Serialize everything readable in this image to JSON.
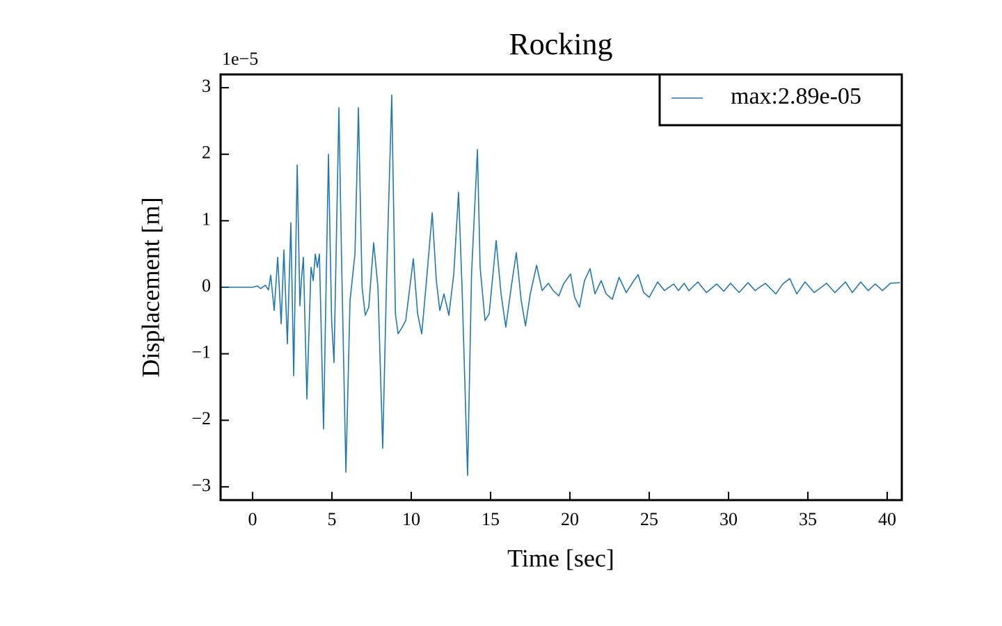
{
  "chart_data": {
    "type": "line",
    "title": "Rocking",
    "x_label": "Time [sec]",
    "y_label": "Displacement [m]",
    "offset_label": "1e−5",
    "xlim": [
      -2.02,
      40.92
    ],
    "ylim": [
      -3.2,
      3.2
    ],
    "xticks": [
      0,
      5,
      10,
      15,
      20,
      25,
      30,
      35,
      40
    ],
    "yticks": [
      {
        "value": -3,
        "label": "−3"
      },
      {
        "value": -2,
        "label": "−2"
      },
      {
        "value": -1,
        "label": "−1"
      },
      0,
      1,
      2,
      3
    ],
    "legend": "upper right",
    "x": [
      -2,
      0,
      0.3,
      0.5,
      0.8,
      1.0,
      1.14,
      1.36,
      1.58,
      1.8,
      1.97,
      2.19,
      2.41,
      2.59,
      2.81,
      2.98,
      3.07,
      3.2,
      3.42,
      3.68,
      3.82,
      3.95,
      4.08,
      4.21,
      4.47,
      4.78,
      4.98,
      5.13,
      5.44,
      5.6,
      5.88,
      6.14,
      6.45,
      6.67,
      6.9,
      7.1,
      7.32,
      7.63,
      7.9,
      8.2,
      8.46,
      8.77,
      9.0,
      9.17,
      9.43,
      9.65,
      10.13,
      10.4,
      10.66,
      10.96,
      11.32,
      11.58,
      11.8,
      12.06,
      12.37,
      12.68,
      12.98,
      13.2,
      13.55,
      13.8,
      14.17,
      14.34,
      14.65,
      14.91,
      15.35,
      15.66,
      15.96,
      16.3,
      16.62,
      16.93,
      17.2,
      17.5,
      17.9,
      18.25,
      18.64,
      18.95,
      19.3,
      19.6,
      20.04,
      20.3,
      20.6,
      20.92,
      21.27,
      21.58,
      21.97,
      22.28,
      22.67,
      23.1,
      23.55,
      24.03,
      24.3,
      24.65,
      25.0,
      25.53,
      25.96,
      26.54,
      26.84,
      27.2,
      27.5,
      28.07,
      28.6,
      29.25,
      29.7,
      30.13,
      30.66,
      31.23,
      31.67,
      32.32,
      32.98,
      33.42,
      33.86,
      34.3,
      34.82,
      35.4,
      36.18,
      36.7,
      37.37,
      37.8,
      38.33,
      38.8,
      39.25,
      39.7,
      40.2,
      40.8
    ],
    "series": [
      {
        "name": "max:2.89e-05",
        "color": "#1f77b4",
        "values": [
          0,
          0,
          0.02,
          -0.02,
          0.03,
          -0.04,
          0.18,
          -0.35,
          0.45,
          -0.55,
          0.56,
          -0.85,
          0.97,
          -1.33,
          1.84,
          -0.28,
          0.1,
          0.45,
          -1.68,
          0.3,
          0.1,
          0.5,
          0.3,
          0.5,
          -2.13,
          2.0,
          -0.5,
          -1.13,
          2.7,
          0.5,
          -2.78,
          -0.2,
          0.5,
          2.7,
          0.0,
          -0.42,
          -0.3,
          0.67,
          0.0,
          -2.42,
          0.3,
          2.89,
          -0.4,
          -0.7,
          -0.6,
          -0.5,
          0.43,
          -0.4,
          -0.7,
          0.1,
          1.12,
          0.1,
          -0.35,
          -0.1,
          -0.42,
          0.2,
          1.43,
          0.0,
          -2.83,
          0.2,
          2.07,
          0.3,
          -0.5,
          -0.4,
          0.7,
          -0.1,
          -0.6,
          0.0,
          0.52,
          -0.2,
          -0.58,
          -0.1,
          0.33,
          -0.05,
          0.06,
          -0.05,
          -0.13,
          0.05,
          0.2,
          -0.15,
          -0.3,
          0.1,
          0.28,
          -0.1,
          0.1,
          -0.1,
          -0.18,
          0.15,
          -0.08,
          0.1,
          0.19,
          -0.08,
          -0.15,
          0.08,
          -0.05,
          0.05,
          -0.05,
          0.06,
          -0.05,
          0.08,
          -0.08,
          0.05,
          -0.06,
          0.06,
          -0.08,
          0.07,
          -0.05,
          0.06,
          -0.1,
          0.05,
          0.13,
          -0.1,
          0.08,
          -0.08,
          0.06,
          -0.08,
          0.08,
          -0.08,
          0.08,
          -0.05,
          0.05,
          -0.05,
          0.06,
          0.07
        ]
      }
    ]
  }
}
